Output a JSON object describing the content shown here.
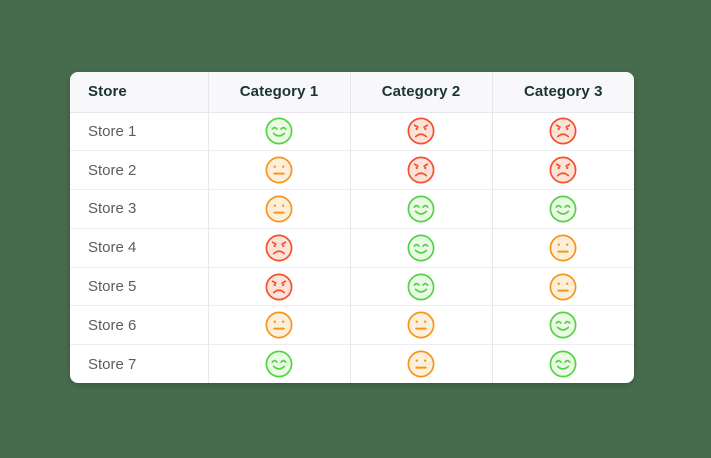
{
  "page": {
    "background_color": "#476b4d",
    "card_color": "#ffffff"
  },
  "chart_data": {
    "type": "table",
    "columns": [
      "Store",
      "Category 1",
      "Category 2",
      "Category 3"
    ],
    "rows": [
      {
        "store": "Store 1",
        "ratings": [
          "happy",
          "angry",
          "angry"
        ]
      },
      {
        "store": "Store 2",
        "ratings": [
          "neutral",
          "angry",
          "angry"
        ]
      },
      {
        "store": "Store 3",
        "ratings": [
          "neutral",
          "happy",
          "happy"
        ]
      },
      {
        "store": "Store 4",
        "ratings": [
          "angry",
          "happy",
          "neutral"
        ]
      },
      {
        "store": "Store 5",
        "ratings": [
          "angry",
          "happy",
          "neutral"
        ]
      },
      {
        "store": "Store 6",
        "ratings": [
          "neutral",
          "neutral",
          "happy"
        ]
      },
      {
        "store": "Store 7",
        "ratings": [
          "happy",
          "neutral",
          "happy"
        ]
      }
    ],
    "legend": "none",
    "grid": "on"
  },
  "moods": {
    "happy": {
      "icon": "happy-face-icon",
      "stroke": "#57d149",
      "fill": "#eafbe3"
    },
    "neutral": {
      "icon": "neutral-face-icon",
      "stroke": "#f8941c",
      "fill": "#fdf0da"
    },
    "angry": {
      "icon": "angry-face-icon",
      "stroke": "#f3502b",
      "fill": "#fce3da"
    }
  },
  "styles": {
    "header_text_color": "#1b342e",
    "store_text_color": "#595d62",
    "header_bg": "#f8f8fa",
    "border_color": "#e6e6ec"
  }
}
